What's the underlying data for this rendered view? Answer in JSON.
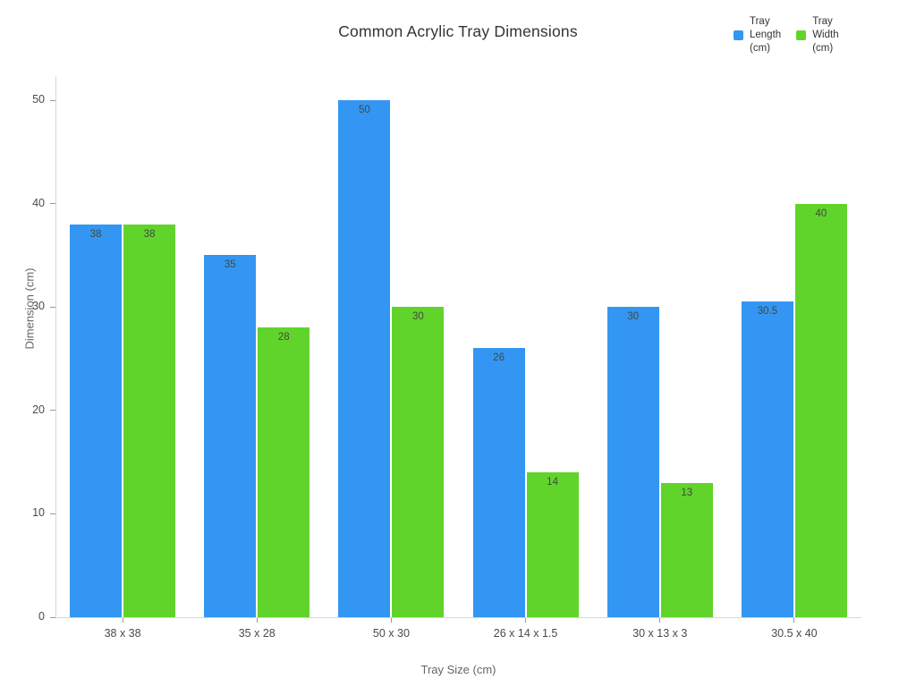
{
  "chart_data": {
    "type": "bar",
    "title": "Common Acrylic Tray Dimensions",
    "categories": [
      "38 x 38",
      "35 x 28",
      "50 x 30",
      "26 x 14 x 1.5",
      "30 x 13 x 3",
      "30.5 x 40"
    ],
    "series": [
      {
        "name": "Tray Length (cm)",
        "color": "#3496f3",
        "values": [
          38,
          35,
          50,
          26,
          30,
          30.5
        ]
      },
      {
        "name": "Tray Width (cm)",
        "color": "#61d42b",
        "values": [
          38,
          28,
          30,
          14,
          13,
          40
        ]
      }
    ],
    "xlabel": "Tray Size (cm)",
    "ylabel": "Dimension (cm)",
    "ylim": [
      0,
      52.3
    ],
    "yticks": [
      0,
      10,
      20,
      30,
      40,
      50
    ],
    "grid": false,
    "legend_position": "top-right",
    "bar_value_labels": true
  },
  "colors": {
    "title_text": "#333333",
    "legend_text": "#333333",
    "axis_line": "#d6d6d6",
    "tick_mark": "#9a9a9a",
    "tick_label": "#4a4a4a",
    "axis_title": "#666666",
    "bar_label": "#3f4a3f",
    "background": "#ffffff"
  }
}
